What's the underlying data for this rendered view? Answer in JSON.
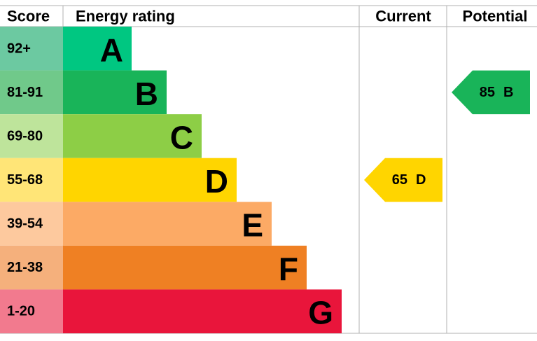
{
  "headers": {
    "score": "Score",
    "rating": "Energy rating",
    "current": "Current",
    "potential": "Potential"
  },
  "bands": [
    {
      "score": "92+",
      "letter": "A",
      "color": "#00c781",
      "light": "#6cc9a1"
    },
    {
      "score": "81-91",
      "letter": "B",
      "color": "#19b459",
      "light": "#70c98a"
    },
    {
      "score": "69-80",
      "letter": "C",
      "color": "#8dce46",
      "light": "#bee49b"
    },
    {
      "score": "55-68",
      "letter": "D",
      "color": "#ffd500",
      "light": "#ffe577"
    },
    {
      "score": "39-54",
      "letter": "E",
      "color": "#fcaa65",
      "light": "#fdc99e"
    },
    {
      "score": "21-38",
      "letter": "F",
      "color": "#ef8023",
      "light": "#f5b07c"
    },
    {
      "score": "1-20",
      "letter": "G",
      "color": "#e9153b",
      "light": "#f27a8e"
    }
  ],
  "current": {
    "value": 65,
    "letter": "D"
  },
  "potential": {
    "value": 85,
    "letter": "B"
  }
}
